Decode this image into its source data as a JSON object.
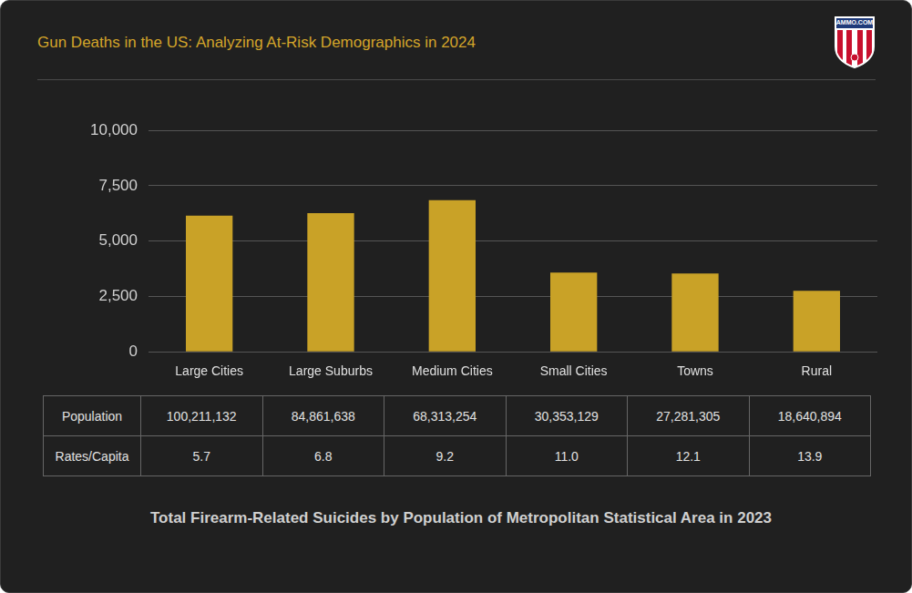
{
  "chart_data": {
    "type": "bar",
    "title": "Gun Deaths in the US: Analyzing At-Risk Demographics in 2024",
    "subtitle": "Total Firearm-Related Suicides by Population of Metropolitan Statistical Area in 2023",
    "logo_text": "AMMO.COM",
    "categories": [
      "Large Cities",
      "Large Suburbs",
      "Medium Cities",
      "Small Cities",
      "Towns",
      "Rural"
    ],
    "values": [
      6150,
      6260,
      6850,
      3580,
      3540,
      2760
    ],
    "color": "#c9a227",
    "ylim": [
      0,
      10000
    ],
    "yticks": [
      0,
      {
        "value": 2500,
        "label": "2,500"
      },
      {
        "value": 5000,
        "label": "5,000"
      },
      {
        "value": 7500,
        "label": "7,500"
      },
      {
        "value": 10000,
        "label": "10,000"
      }
    ],
    "grid": true,
    "table": {
      "rows": [
        [
          "Population",
          "100,211,132",
          "84,861,638",
          "68,313,254",
          "30,353,129",
          "27,281,305",
          "18,640,894"
        ],
        [
          "Rates/Capita",
          "5.7",
          "6.8",
          "9.2",
          "11.0",
          "12.1",
          "13.9"
        ]
      ]
    }
  }
}
